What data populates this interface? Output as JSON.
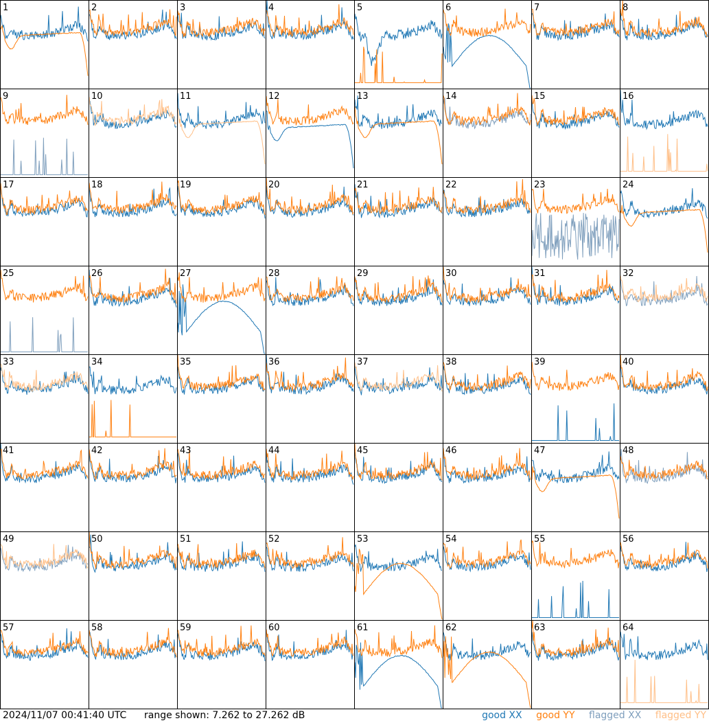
{
  "chart_data": {
    "type": "line",
    "title": "",
    "layout": "8x8 grid of small multiples",
    "panels": [
      "1",
      "2",
      "3",
      "4",
      "5",
      "6",
      "7",
      "8",
      "9",
      "10",
      "11",
      "12",
      "13",
      "14",
      "15",
      "16",
      "17",
      "18",
      "19",
      "20",
      "21",
      "22",
      "23",
      "24",
      "25",
      "26",
      "27",
      "28",
      "29",
      "30",
      "31",
      "32",
      "33",
      "34",
      "35",
      "36",
      "37",
      "38",
      "39",
      "40",
      "41",
      "42",
      "43",
      "44",
      "45",
      "46",
      "47",
      "48",
      "49",
      "50",
      "51",
      "52",
      "53",
      "54",
      "55",
      "56",
      "57",
      "58",
      "59",
      "60",
      "61",
      "62",
      "63",
      "64"
    ],
    "series": [
      {
        "name": "good XX",
        "color": "#1f77b4"
      },
      {
        "name": "good YY",
        "color": "#ff7f0e"
      },
      {
        "name": "flagged XX",
        "color": "#7f9fbd"
      },
      {
        "name": "flagged YY",
        "color": "#ffbf87"
      }
    ],
    "range_db": [
      7.262,
      27.262
    ],
    "flag_status": {
      "9": {
        "xx": "flagged",
        "yy": "good"
      },
      "10": {
        "xx": "good",
        "yy": "flagged"
      },
      "11": {
        "xx": "good",
        "yy": "flagged"
      },
      "14": {
        "xx": "flagged",
        "yy": "good"
      },
      "16": {
        "xx": "good",
        "yy": "flagged"
      },
      "23": {
        "xx": "flagged",
        "yy": "good"
      },
      "25": {
        "xx": "flagged",
        "yy": "good"
      },
      "32": {
        "xx": "flagged",
        "yy": "flagged"
      },
      "33": {
        "xx": "good",
        "yy": "flagged"
      },
      "37": {
        "xx": "good",
        "yy": "flagged"
      },
      "48": {
        "xx": "flagged",
        "yy": "good"
      },
      "49": {
        "xx": "flagged",
        "yy": "flagged"
      },
      "64": {
        "xx": "good",
        "yy": "flagged"
      }
    },
    "notable_shapes": {
      "1": {
        "yy": "arc"
      },
      "5": {
        "xx": "dip",
        "yy": "flat"
      },
      "6": {
        "xx": "deep_arc"
      },
      "9": {
        "xx": "flat"
      },
      "11": {
        "yy": "arc"
      },
      "12": {
        "xx": "arc"
      },
      "13": {
        "yy": "arc"
      },
      "16": {
        "yy": "flat"
      },
      "23": {
        "xx": "noisy_low"
      },
      "24": {
        "yy": "arc"
      },
      "25": {
        "xx": "flat"
      },
      "27": {
        "xx": "deep_arc"
      },
      "34": {
        "yy": "flat"
      },
      "39": {
        "xx": "flat"
      },
      "47": {
        "yy": "arc"
      },
      "53": {
        "yy": "deep_arc"
      },
      "55": {
        "xx": "flat"
      },
      "61": {
        "xx": "deep_arc"
      },
      "62": {
        "yy": "deep_arc"
      },
      "64": {
        "yy": "flat"
      }
    }
  },
  "footer": {
    "timestamp": "2024/11/07 00:41:40 UTC",
    "range_text": "range shown: 7.262 to 27.262 dB"
  },
  "legend": {
    "good_xx": "good XX",
    "good_yy": "good YY",
    "flagged_xx": "flagged XX",
    "flagged_yy": "flagged YY"
  },
  "colors": {
    "good_xx": "#1f77b4",
    "good_yy": "#ff7f0e",
    "flagged_xx": "#7f9fbd",
    "flagged_yy": "#ffbf87"
  }
}
